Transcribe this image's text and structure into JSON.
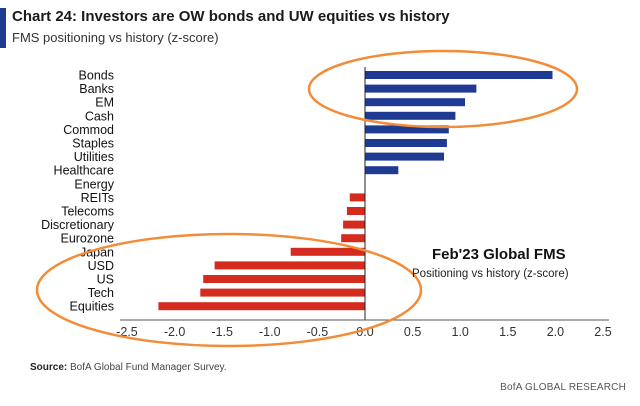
{
  "header": {
    "title": "Chart 24: Investors are OW bonds and UW equities vs history",
    "subtitle": "FMS positioning vs history (z-score)"
  },
  "annotation": {
    "title": "Feb'23 Global FMS",
    "subtitle": "Positioning vs history (z-score)"
  },
  "footer": {
    "source_label": "Source:",
    "source_text": "BofA Global Fund Manager Survey.",
    "brand": "BofA GLOBAL RESEARCH"
  },
  "colors": {
    "positive": "#1f3a93",
    "negative": "#d42b1e",
    "highlight": "#f28c38"
  },
  "chart_data": {
    "type": "bar",
    "orientation": "horizontal",
    "title": "Chart 24: Investors are OW bonds and UW equities vs history",
    "subtitle": "FMS positioning vs history (z-score)",
    "xlabel": "",
    "ylabel": "",
    "xlim": [
      -2.5,
      2.5
    ],
    "xticks": [
      -2.5,
      -2.0,
      -1.5,
      -1.0,
      -0.5,
      0.0,
      0.5,
      1.0,
      1.5,
      2.0,
      2.5
    ],
    "xtick_labels": [
      "-2.5",
      "-2.0",
      "-1.5",
      "-1.0",
      "-0.5",
      "0.0",
      "0.5",
      "1.0",
      "1.5",
      "2.0",
      "2.5"
    ],
    "categories": [
      "Bonds",
      "Banks",
      "EM",
      "Cash",
      "Commod",
      "Staples",
      "Utilities",
      "Healthcare",
      "Energy",
      "REITs",
      "Telecoms",
      "Discretionary",
      "Eurozone",
      "Japan",
      "USD",
      "US",
      "Tech",
      "Equities"
    ],
    "values": [
      1.97,
      1.17,
      1.05,
      0.95,
      0.88,
      0.86,
      0.83,
      0.35,
      0.0,
      -0.16,
      -0.19,
      -0.23,
      -0.25,
      -0.78,
      -1.58,
      -1.7,
      -1.73,
      -2.17
    ],
    "highlights": [
      {
        "shape": "ellipse",
        "around": [
          "Bonds",
          "Banks",
          "EM",
          "Cash"
        ]
      },
      {
        "shape": "ellipse",
        "around": [
          "Japan",
          "USD",
          "US",
          "Tech",
          "Equities"
        ]
      }
    ]
  }
}
